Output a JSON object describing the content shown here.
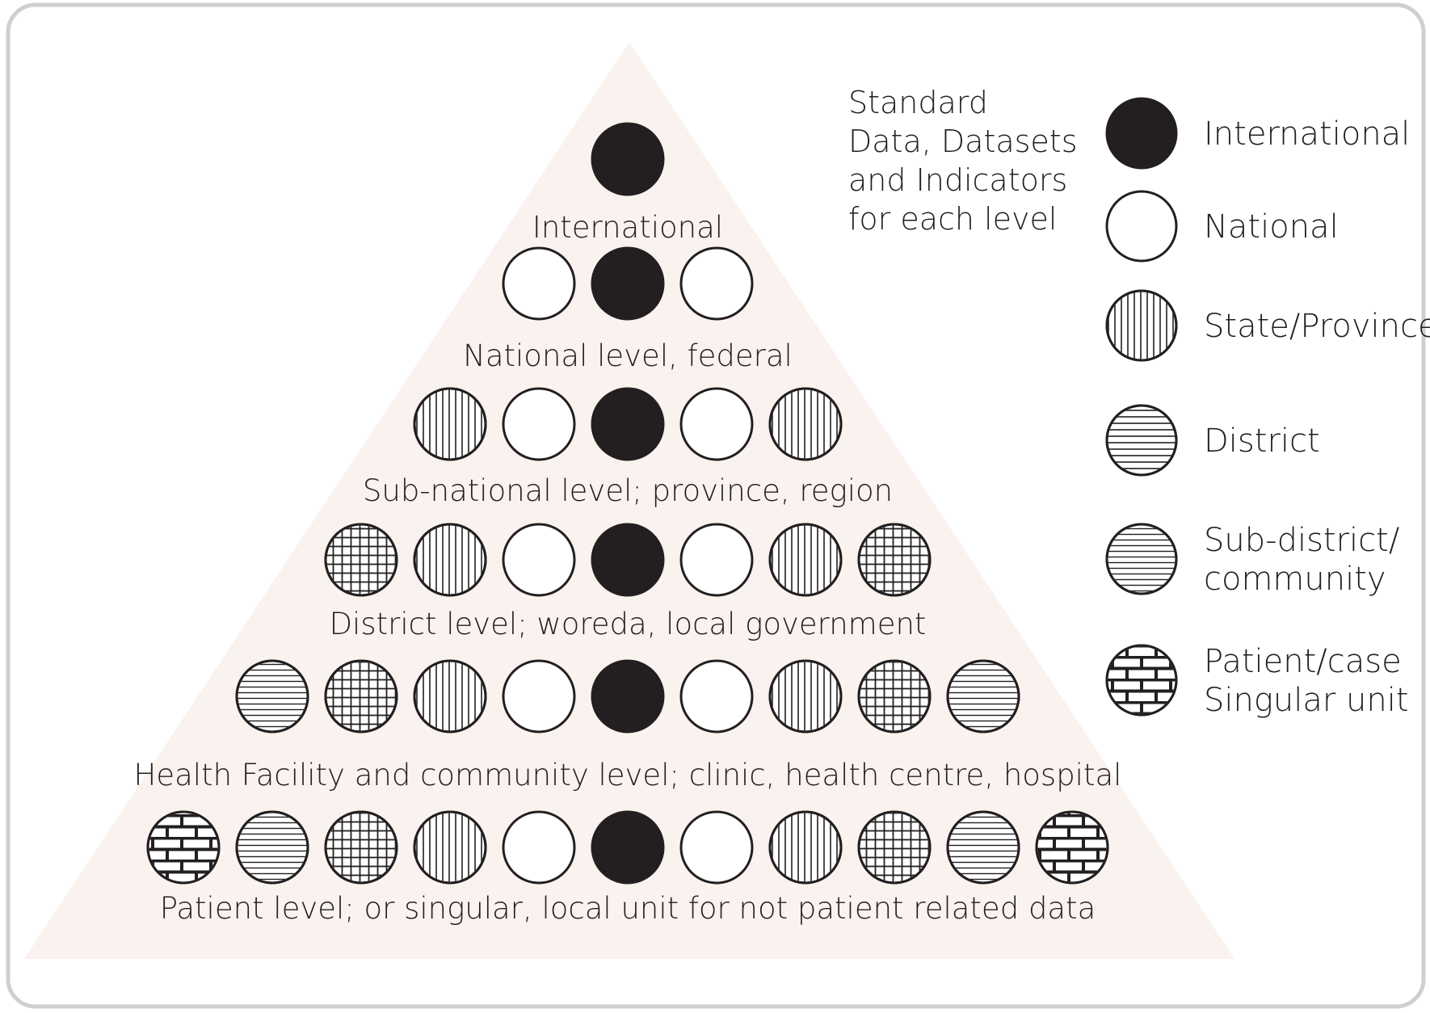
{
  "heading": [
    "Standard",
    "Data, Datasets",
    "and Indicators",
    "for each level"
  ],
  "colors": {
    "triangle": "#f9f2ee",
    "frame": "#cfcfcf",
    "ink": "#231f20",
    "paper": "#ffffff"
  },
  "levels": [
    {
      "label": "International",
      "circles": [
        "international"
      ]
    },
    {
      "label": "National level, federal",
      "circles": [
        "national",
        "international",
        "national"
      ]
    },
    {
      "label": "Sub-national level; province, region",
      "circles": [
        "state",
        "national",
        "international",
        "national",
        "state"
      ]
    },
    {
      "label": "District level; woreda, local government",
      "circles": [
        "district-grid",
        "state",
        "national",
        "international",
        "national",
        "state",
        "district-grid"
      ]
    },
    {
      "label": "Health Facility and community level; clinic, health centre, hospital",
      "circles": [
        "subdistrict",
        "district-grid",
        "state",
        "national",
        "international",
        "national",
        "state",
        "district-grid",
        "subdistrict"
      ]
    },
    {
      "label": "Patient level; or singular, local unit for not patient related data",
      "circles": [
        "patient",
        "subdistrict",
        "district-grid",
        "state",
        "national",
        "international",
        "national",
        "state",
        "district-grid",
        "subdistrict",
        "patient"
      ]
    }
  ],
  "legend": [
    {
      "pattern": "international",
      "lines": [
        "International"
      ]
    },
    {
      "pattern": "national",
      "lines": [
        "National"
      ]
    },
    {
      "pattern": "state",
      "lines": [
        "State/Province"
      ]
    },
    {
      "pattern": "district",
      "lines": [
        "District"
      ]
    },
    {
      "pattern": "subdistrict",
      "lines": [
        "Sub-district/",
        "community"
      ]
    },
    {
      "pattern": "patient",
      "lines": [
        "Patient/case",
        "Singular unit"
      ]
    }
  ]
}
